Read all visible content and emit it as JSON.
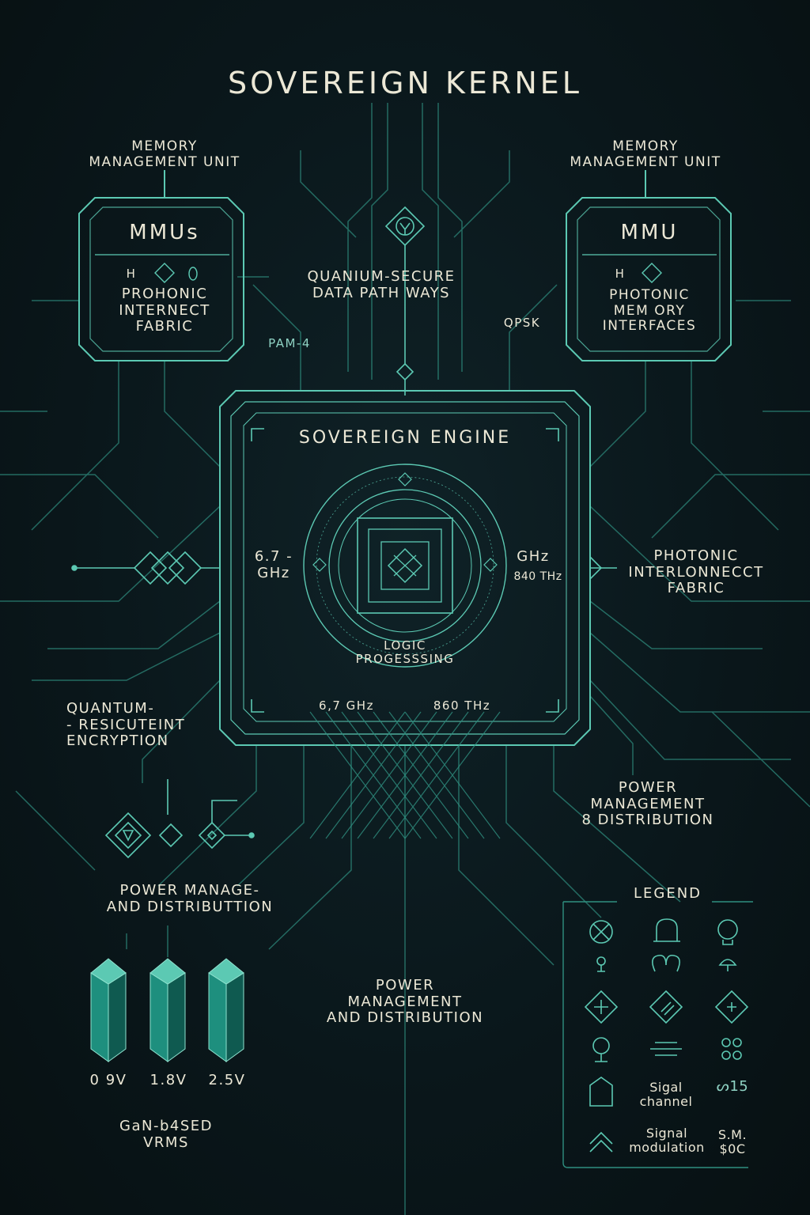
{
  "title": "SOVEREIGN KERNEL",
  "left_module": {
    "header": "MEMORY\nMANAGEMENT UNIT",
    "name": "MMUs",
    "glyph": "H",
    "label": "PROHONIC\nINTERNECT\nFABRIC"
  },
  "right_module": {
    "header": "MEMORY\nMANAGEMENT UNIT",
    "name": "MMU",
    "glyph": "H",
    "label": "PHOTONIC\nMEM ORY\nINTERFACES"
  },
  "pathways_label": "QUANIUM-SECURE\nDATA PATH WAYS",
  "pam_label": "PAM-4",
  "qpsk_label": "QPSK",
  "engine": {
    "title": "SOVEREIGN ENGINE",
    "left_freq": "6.7 -\nGHz",
    "right_freq_top": "GHz",
    "right_freq_bottom": "840 THz",
    "core_label": "LOGIC\nPROGESSSING",
    "bottom_left": "6,7 GHz",
    "bottom_right": "860 THz"
  },
  "photonic_label": "PHOTONIC\nINTERLONNECCT\nFABRIC",
  "quantum_label": "QUANTUM-\n- RESICUTEINT\nENCRYPTION",
  "power_right": "POWER\nMANAGEMENT\n8 DISTRIBUTION",
  "power_left": "POWER MANAGE-\nAND DISTRIBUTTION",
  "power_center": "POWER\nMANAGEMENT\nAND DISTRIBUTION",
  "vrm": {
    "voltages": [
      "0 9V",
      "1.8V",
      "2.5V"
    ],
    "caption": "GaN-b4SED\nVRMS"
  },
  "legend": {
    "title": "LEGEND",
    "text_signal_channel": "Sigal\nchannel",
    "text_signal_modulation": "Signal\nmodulation",
    "text_code_top": "ᔕ15",
    "text_code_bottom": "S.M.\n$0C"
  },
  "colors": {
    "background": "#0a171b",
    "line": "#2f8f80",
    "line_bright": "#5cc9b3",
    "text": "#ece8d6",
    "crystal": "#1e8f7e"
  },
  "icons": [
    "circle-cross-icon",
    "arch-icon",
    "bulb-icon",
    "pin-icon",
    "loop-icon",
    "dome-icon",
    "diamond-plus-icon",
    "diamond-slash-icon",
    "diamond-plus-small-icon",
    "ring-pin-icon",
    "lines-icon",
    "rings-icon",
    "house-dollar-icon",
    "chevron-up-icon"
  ]
}
